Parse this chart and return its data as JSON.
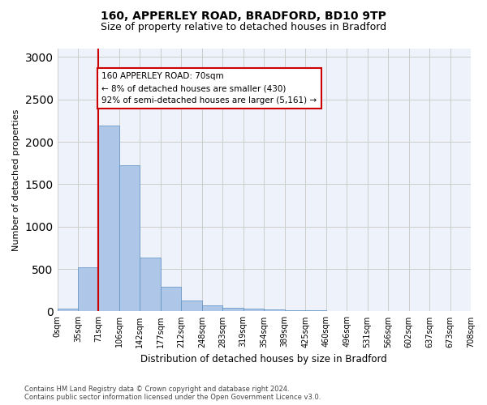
{
  "title_line1": "160, APPERLEY ROAD, BRADFORD, BD10 9TP",
  "title_line2": "Size of property relative to detached houses in Bradford",
  "xlabel": "Distribution of detached houses by size in Bradford",
  "ylabel": "Number of detached properties",
  "bin_labels": [
    "0sqm",
    "35sqm",
    "71sqm",
    "106sqm",
    "142sqm",
    "177sqm",
    "212sqm",
    "248sqm",
    "283sqm",
    "319sqm",
    "354sqm",
    "389sqm",
    "425sqm",
    "460sqm",
    "496sqm",
    "531sqm",
    "566sqm",
    "602sqm",
    "637sqm",
    "673sqm",
    "708sqm"
  ],
  "bar_values": [
    30,
    520,
    2190,
    1720,
    630,
    290,
    130,
    75,
    45,
    35,
    25,
    10,
    10,
    5,
    5,
    0,
    0,
    0,
    0,
    0
  ],
  "bar_color": "#aec6e8",
  "bar_edge_color": "#5a8fc2",
  "grid_color": "#cccccc",
  "background_color": "#eef2fb",
  "annotation_box_color": "#cc0000",
  "annotation_text": "160 APPERLEY ROAD: 70sqm\n← 8% of detached houses are smaller (430)\n92% of semi-detached houses are larger (5,161) →",
  "footer_text": "Contains HM Land Registry data © Crown copyright and database right 2024.\nContains public sector information licensed under the Open Government Licence v3.0.",
  "ylim": [
    0,
    3100
  ],
  "yticks": [
    0,
    500,
    1000,
    1500,
    2000,
    2500,
    3000
  ],
  "property_line_x": 2.0
}
